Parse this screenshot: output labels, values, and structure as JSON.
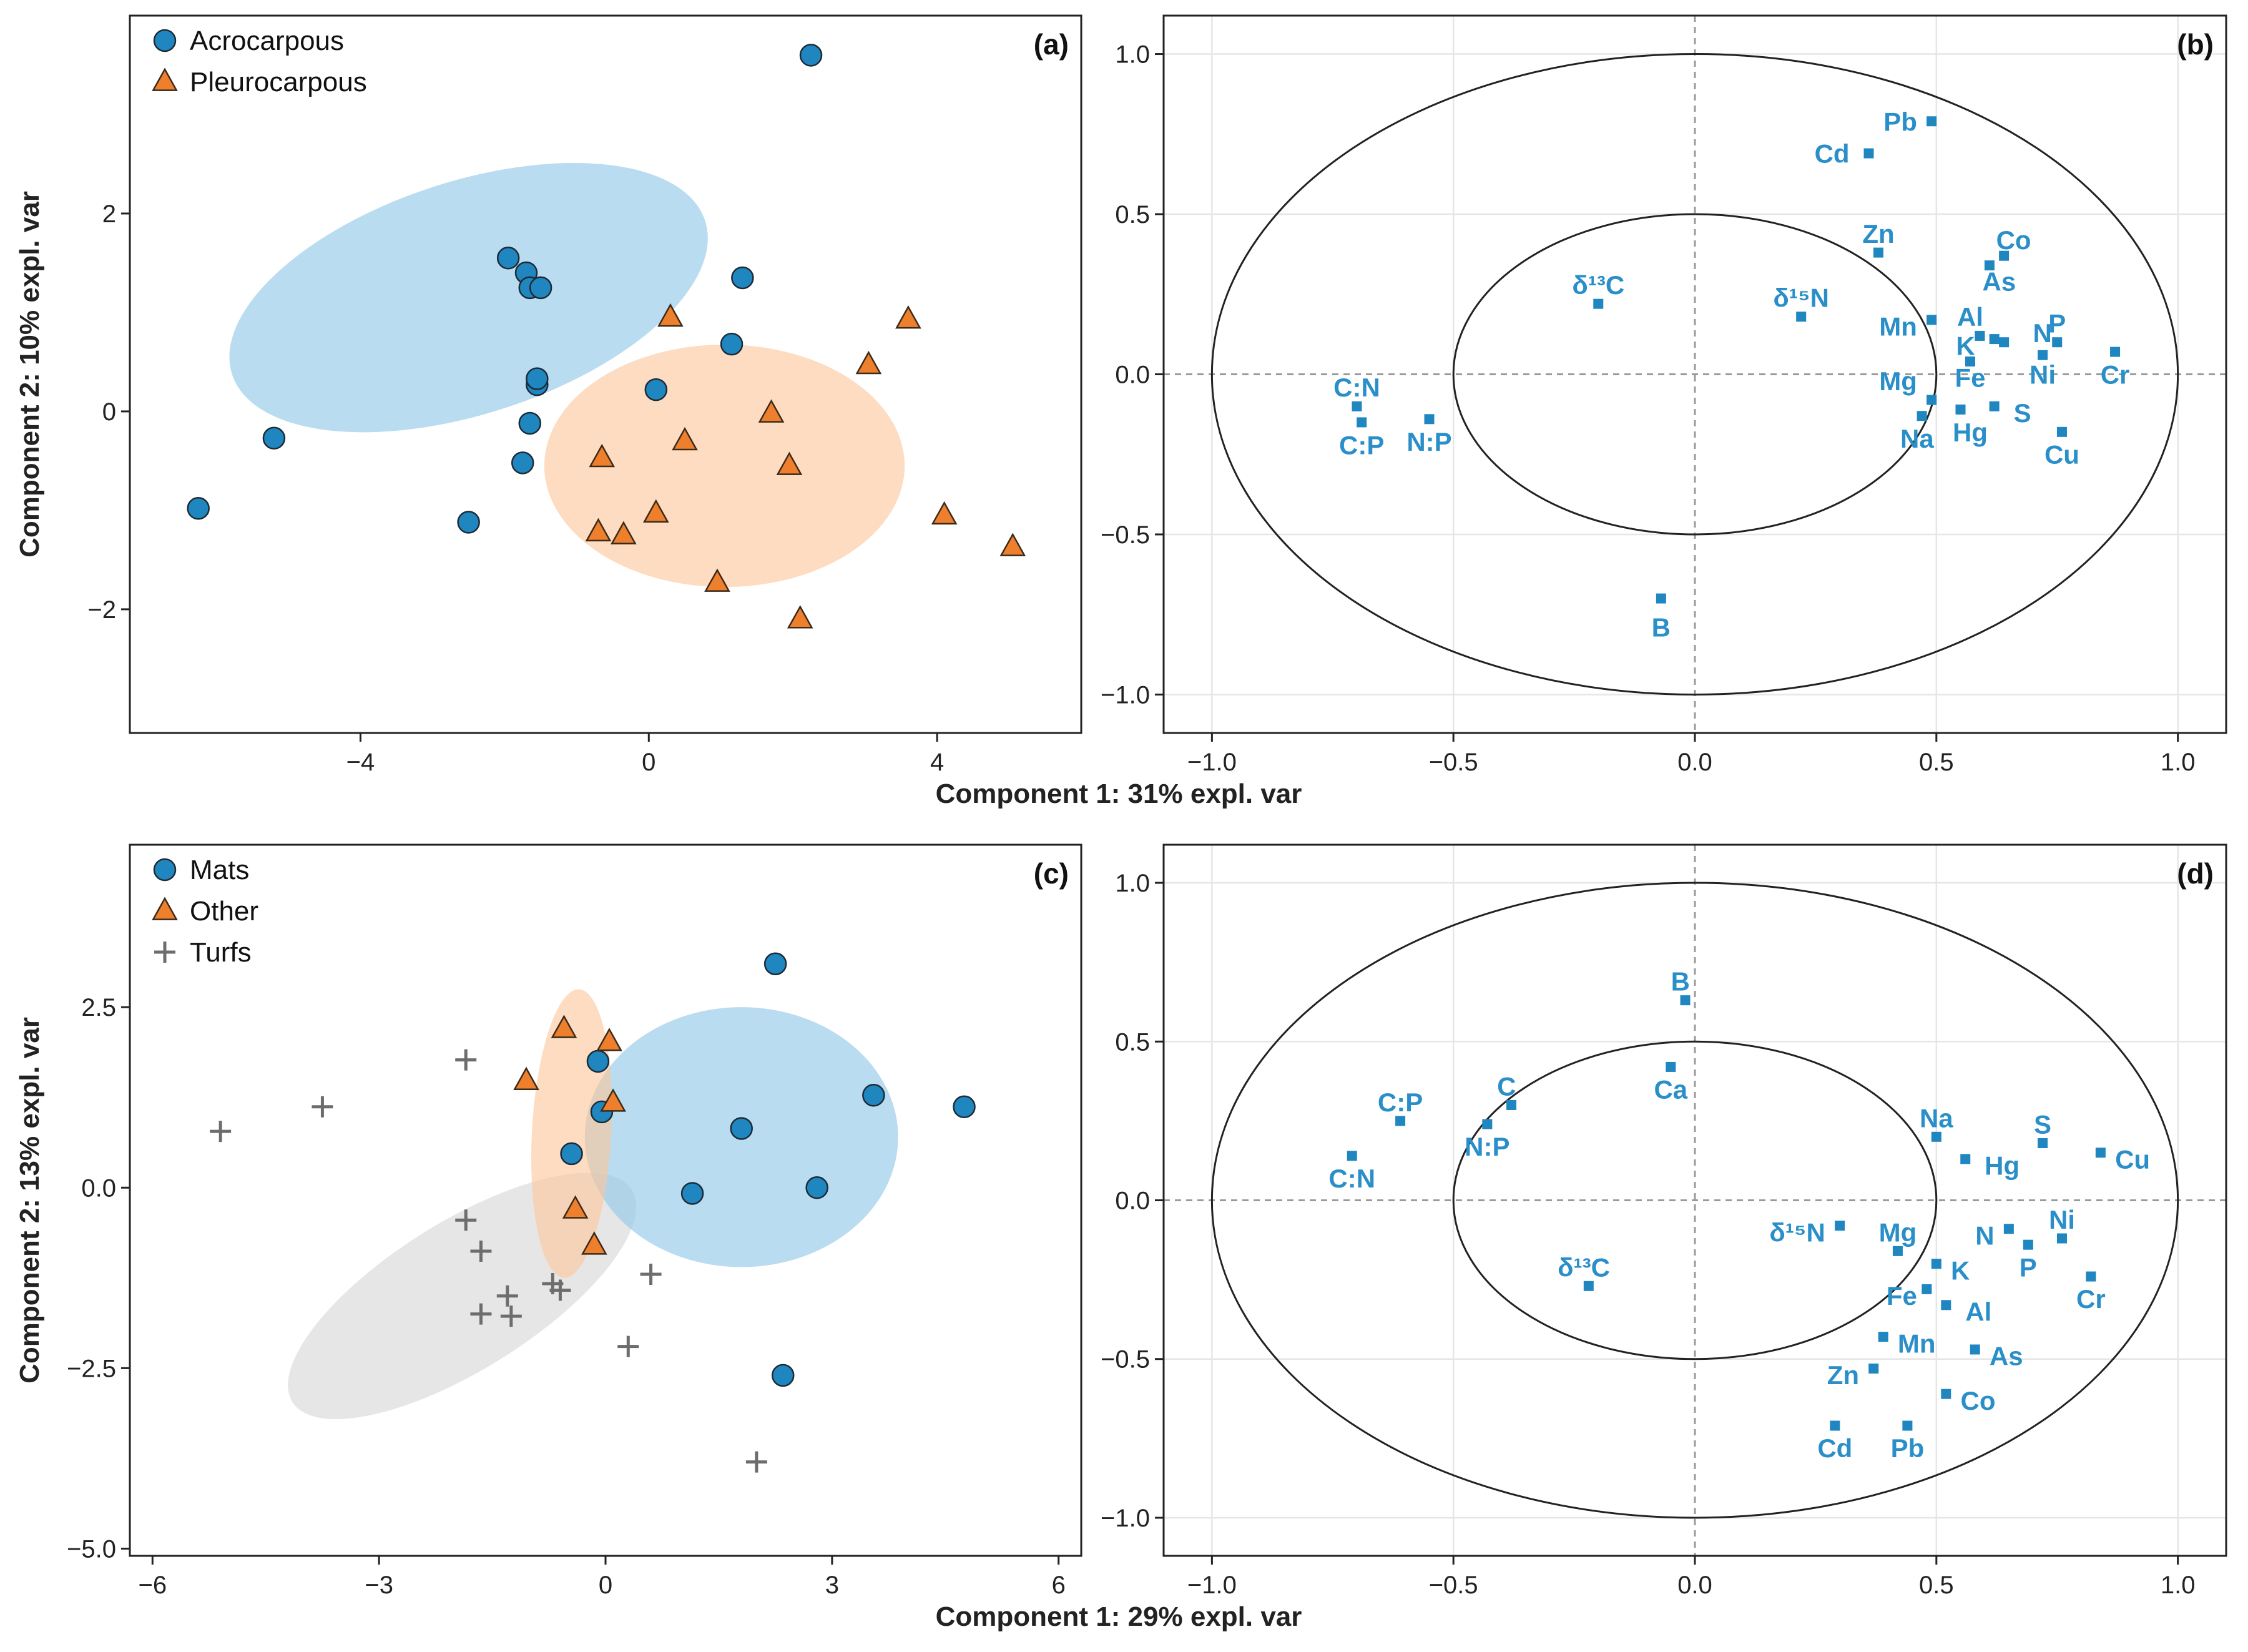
{
  "colors": {
    "blue": "#1f86c0",
    "blue_fill": "#8ec7e6",
    "orange": "#ee7f2d",
    "orange_fill": "#fbc79b",
    "gray": "#6d6d6d",
    "gray_fill": "#d7d7d7",
    "label_blue": "#2a8fc9"
  },
  "chart_data": [
    {
      "id": "a",
      "type": "scatter",
      "panel_label": "(a)",
      "xlim": [
        -7.2,
        6.0
      ],
      "ylim": [
        -3.25,
        4.0
      ],
      "xticks": [
        -4,
        0,
        4
      ],
      "xtick_labels": [
        "−4",
        "0",
        "4"
      ],
      "yticks": [
        2,
        0,
        -2
      ],
      "ytick_labels": [
        "2",
        "0",
        "−2"
      ],
      "ylabel": "Component 2: 10% expl. var",
      "legend": [
        {
          "label": "Acrocarpous",
          "marker": "circle",
          "color": "blue"
        },
        {
          "label": "Pleurocarpous",
          "marker": "triangle",
          "color": "orange"
        }
      ],
      "ellipses": [
        {
          "group": "Acrocarpous",
          "cx": -2.5,
          "cy": 1.15,
          "rx": 6.9,
          "ry": 2.35,
          "angle_deg": 18,
          "color": "blue"
        },
        {
          "group": "Pleurocarpous",
          "cx": 1.05,
          "cy": -0.55,
          "rx": 5.0,
          "ry": 2.45,
          "angle_deg": 0,
          "color": "orange"
        }
      ],
      "series": [
        {
          "name": "Acrocarpous",
          "marker": "circle",
          "color": "blue",
          "points": [
            [
              2.25,
              3.6
            ],
            [
              -1.95,
              1.55
            ],
            [
              -1.7,
              1.4
            ],
            [
              -1.65,
              1.25
            ],
            [
              -1.5,
              1.25
            ],
            [
              1.3,
              1.35
            ],
            [
              1.15,
              0.68
            ],
            [
              -1.55,
              0.27
            ],
            [
              -1.55,
              0.33
            ],
            [
              0.1,
              0.22
            ],
            [
              -1.65,
              -0.12
            ],
            [
              -5.2,
              -0.27
            ],
            [
              -1.75,
              -0.52
            ],
            [
              -6.25,
              -0.98
            ],
            [
              -2.5,
              -1.12
            ]
          ]
        },
        {
          "name": "Pleurocarpous",
          "marker": "triangle",
          "color": "orange",
          "points": [
            [
              0.3,
              0.95
            ],
            [
              3.6,
              0.93
            ],
            [
              3.05,
              0.47
            ],
            [
              1.7,
              -0.02
            ],
            [
              0.5,
              -0.3
            ],
            [
              -0.65,
              -0.47
            ],
            [
              1.95,
              -0.55
            ],
            [
              0.1,
              -1.03
            ],
            [
              -0.7,
              -1.22
            ],
            [
              -0.35,
              -1.25
            ],
            [
              4.1,
              -1.05
            ],
            [
              5.05,
              -1.37
            ],
            [
              0.95,
              -1.73
            ],
            [
              2.1,
              -2.1
            ]
          ]
        }
      ]
    },
    {
      "id": "b",
      "type": "scatter",
      "panel_label": "(b)",
      "xlim": [
        -1.1,
        1.1
      ],
      "ylim": [
        -1.12,
        1.12
      ],
      "xticks": [
        -1.0,
        -0.5,
        0.0,
        0.5,
        1.0
      ],
      "xtick_labels": [
        "−1.0",
        "−0.5",
        "0.0",
        "0.5",
        "1.0"
      ],
      "yticks": [
        1.0,
        0.5,
        0.0,
        -0.5,
        -1.0
      ],
      "ytick_labels": [
        "1.0",
        "0.5",
        "0.0",
        "−0.5",
        "−1.0"
      ],
      "xlabel": "Component 1: 31% expl. var",
      "circles": [
        1.0,
        0.5
      ],
      "variables": [
        {
          "label": "Pb",
          "x": 0.49,
          "y": 0.79,
          "ldx": -0.03,
          "ldy": 0.0,
          "anchor": "end"
        },
        {
          "label": "Cd",
          "x": 0.36,
          "y": 0.69,
          "ldx": -0.04,
          "ldy": 0.0,
          "anchor": "end"
        },
        {
          "label": "Zn",
          "x": 0.38,
          "y": 0.38,
          "ldx": 0.0,
          "ldy": 0.06,
          "anchor": "middle"
        },
        {
          "label": "Co",
          "x": 0.64,
          "y": 0.37,
          "ldx": 0.02,
          "ldy": 0.05,
          "anchor": "middle"
        },
        {
          "label": "As",
          "x": 0.61,
          "y": 0.34,
          "ldx": 0.02,
          "ldy": -0.05,
          "anchor": "middle"
        },
        {
          "label": "δ¹³C",
          "x": -0.2,
          "y": 0.22,
          "ldx": 0.0,
          "ldy": 0.06,
          "anchor": "middle"
        },
        {
          "label": "δ¹⁵N",
          "x": 0.22,
          "y": 0.18,
          "ldx": 0.0,
          "ldy": 0.06,
          "anchor": "middle"
        },
        {
          "label": "Mn",
          "x": 0.49,
          "y": 0.17,
          "ldx": -0.03,
          "ldy": -0.02,
          "anchor": "end"
        },
        {
          "label": "Al",
          "x": 0.59,
          "y": 0.12,
          "ldx": -0.02,
          "ldy": 0.06,
          "anchor": "middle"
        },
        {
          "label": "N",
          "x": 0.64,
          "y": 0.1,
          "ldx": 0.06,
          "ldy": 0.03,
          "anchor": "start"
        },
        {
          "label": "P",
          "x": 0.75,
          "y": 0.1,
          "ldx": 0.0,
          "ldy": 0.06,
          "anchor": "middle"
        },
        {
          "label": "K",
          "x": 0.62,
          "y": 0.11,
          "ldx": -0.04,
          "ldy": -0.02,
          "anchor": "end"
        },
        {
          "label": "Ni",
          "x": 0.72,
          "y": 0.06,
          "ldx": 0.0,
          "ldy": -0.06,
          "anchor": "middle"
        },
        {
          "label": "Cr",
          "x": 0.87,
          "y": 0.07,
          "ldx": 0.0,
          "ldy": -0.07,
          "anchor": "middle"
        },
        {
          "label": "Mg",
          "x": 0.49,
          "y": -0.08,
          "ldx": -0.03,
          "ldy": 0.06,
          "anchor": "end"
        },
        {
          "label": "Fe",
          "x": 0.57,
          "y": 0.04,
          "ldx": 0.0,
          "ldy": -0.05,
          "anchor": "middle"
        },
        {
          "label": "S",
          "x": 0.62,
          "y": -0.1,
          "ldx": 0.04,
          "ldy": -0.02,
          "anchor": "start"
        },
        {
          "label": "Hg",
          "x": 0.55,
          "y": -0.11,
          "ldx": 0.02,
          "ldy": -0.07,
          "anchor": "middle"
        },
        {
          "label": "Na",
          "x": 0.47,
          "y": -0.13,
          "ldx": -0.01,
          "ldy": -0.07,
          "anchor": "middle"
        },
        {
          "label": "Cu",
          "x": 0.76,
          "y": -0.18,
          "ldx": 0.0,
          "ldy": -0.07,
          "anchor": "middle"
        },
        {
          "label": "C:N",
          "x": -0.7,
          "y": -0.1,
          "ldx": 0.0,
          "ldy": 0.06,
          "anchor": "middle"
        },
        {
          "label": "C:P",
          "x": -0.69,
          "y": -0.15,
          "ldx": 0.0,
          "ldy": -0.07,
          "anchor": "middle"
        },
        {
          "label": "N:P",
          "x": -0.55,
          "y": -0.14,
          "ldx": 0.0,
          "ldy": -0.07,
          "anchor": "middle"
        },
        {
          "label": "B",
          "x": -0.07,
          "y": -0.7,
          "ldx": 0.0,
          "ldy": -0.09,
          "anchor": "middle"
        }
      ]
    },
    {
      "id": "c",
      "type": "scatter",
      "panel_label": "(c)",
      "xlim": [
        -6.3,
        6.3
      ],
      "ylim": [
        -5.1,
        4.75
      ],
      "xticks": [
        -6,
        -3,
        0,
        3,
        6
      ],
      "xtick_labels": [
        "−6",
        "−3",
        "0",
        "3",
        "6"
      ],
      "yticks": [
        2.5,
        0.0,
        -2.5,
        -5.0
      ],
      "ytick_labels": [
        "2.5",
        "0.0",
        "−2.5",
        "−5.0"
      ],
      "ylabel": "Component 2: 13% expl. var",
      "legend": [
        {
          "label": "Mats",
          "marker": "circle",
          "color": "blue"
        },
        {
          "label": "Other",
          "marker": "triangle",
          "color": "orange"
        },
        {
          "label": "Turfs",
          "marker": "plus",
          "color": "gray"
        }
      ],
      "ellipses": [
        {
          "group": "Turfs",
          "cx": -1.9,
          "cy": -1.5,
          "rx": 5.3,
          "ry": 2.05,
          "angle_deg": 32,
          "color": "gray"
        },
        {
          "group": "Mats",
          "cx": 1.8,
          "cy": 0.7,
          "rx": 4.15,
          "ry": 3.6,
          "angle_deg": 0,
          "color": "blue"
        },
        {
          "group": "Other",
          "cx": -0.45,
          "cy": 0.75,
          "rx": 1.05,
          "ry": 4.0,
          "angle_deg": -3,
          "color": "orange"
        }
      ],
      "series": [
        {
          "name": "Mats",
          "marker": "circle",
          "color": "blue",
          "points": [
            [
              2.25,
              3.1
            ],
            [
              3.55,
              1.28
            ],
            [
              4.75,
              1.12
            ],
            [
              1.8,
              0.82
            ],
            [
              -0.1,
              1.75
            ],
            [
              -0.05,
              1.05
            ],
            [
              -0.45,
              0.47
            ],
            [
              2.8,
              0.0
            ],
            [
              1.15,
              -0.08
            ],
            [
              2.35,
              -2.6
            ]
          ]
        },
        {
          "name": "Other",
          "marker": "triangle",
          "color": "orange",
          "points": [
            [
              -0.55,
              2.2
            ],
            [
              0.05,
              2.02
            ],
            [
              -1.05,
              1.48
            ],
            [
              0.1,
              1.18
            ],
            [
              -0.4,
              -0.3
            ],
            [
              -0.15,
              -0.8
            ]
          ]
        },
        {
          "name": "Turfs",
          "marker": "plus",
          "color": "gray",
          "points": [
            [
              -5.1,
              0.78
            ],
            [
              -3.75,
              1.12
            ],
            [
              -1.85,
              1.77
            ],
            [
              -1.85,
              -0.45
            ],
            [
              -1.65,
              -0.88
            ],
            [
              -1.65,
              -1.75
            ],
            [
              -1.3,
              -1.5
            ],
            [
              -1.25,
              -1.78
            ],
            [
              -0.7,
              -1.33
            ],
            [
              -0.6,
              -1.42
            ],
            [
              0.6,
              -1.2
            ],
            [
              0.3,
              -2.2
            ],
            [
              2.0,
              -3.8
            ]
          ]
        }
      ]
    },
    {
      "id": "d",
      "type": "scatter",
      "panel_label": "(d)",
      "xlim": [
        -1.1,
        1.1
      ],
      "ylim": [
        -1.12,
        1.12
      ],
      "xticks": [
        -1.0,
        -0.5,
        0.0,
        0.5,
        1.0
      ],
      "xtick_labels": [
        "−1.0",
        "−0.5",
        "0.0",
        "0.5",
        "1.0"
      ],
      "yticks": [
        1.0,
        0.5,
        0.0,
        -0.5,
        -1.0
      ],
      "ytick_labels": [
        "1.0",
        "0.5",
        "0.0",
        "−0.5",
        "−1.0"
      ],
      "xlabel": "Component 1: 29% expl. var",
      "circles": [
        1.0,
        0.5
      ],
      "variables": [
        {
          "label": "B",
          "x": -0.02,
          "y": 0.63,
          "ldx": -0.01,
          "ldy": 0.06,
          "anchor": "middle"
        },
        {
          "label": "Ca",
          "x": -0.05,
          "y": 0.42,
          "ldx": 0.0,
          "ldy": -0.07,
          "anchor": "middle"
        },
        {
          "label": "C:P",
          "x": -0.61,
          "y": 0.25,
          "ldx": 0.0,
          "ldy": 0.06,
          "anchor": "middle"
        },
        {
          "label": "C",
          "x": -0.38,
          "y": 0.3,
          "ldx": -0.01,
          "ldy": 0.06,
          "anchor": "middle"
        },
        {
          "label": "N:P",
          "x": -0.43,
          "y": 0.24,
          "ldx": 0.0,
          "ldy": -0.07,
          "anchor": "middle"
        },
        {
          "label": "C:N",
          "x": -0.71,
          "y": 0.14,
          "ldx": 0.0,
          "ldy": -0.07,
          "anchor": "middle"
        },
        {
          "label": "Na",
          "x": 0.5,
          "y": 0.2,
          "ldx": 0.0,
          "ldy": 0.06,
          "anchor": "middle"
        },
        {
          "label": "S",
          "x": 0.72,
          "y": 0.18,
          "ldx": 0.0,
          "ldy": 0.06,
          "anchor": "middle"
        },
        {
          "label": "Hg",
          "x": 0.56,
          "y": 0.13,
          "ldx": 0.04,
          "ldy": -0.02,
          "anchor": "start"
        },
        {
          "label": "Cu",
          "x": 0.84,
          "y": 0.15,
          "ldx": 0.03,
          "ldy": -0.02,
          "anchor": "start"
        },
        {
          "label": "δ¹⁵N",
          "x": 0.3,
          "y": -0.08,
          "ldx": -0.03,
          "ldy": -0.02,
          "anchor": "end"
        },
        {
          "label": "Mg",
          "x": 0.42,
          "y": -0.16,
          "ldx": 0.0,
          "ldy": 0.06,
          "anchor": "middle"
        },
        {
          "label": "N",
          "x": 0.65,
          "y": -0.09,
          "ldx": -0.03,
          "ldy": -0.02,
          "anchor": "end"
        },
        {
          "label": "Ni",
          "x": 0.76,
          "y": -0.12,
          "ldx": 0.0,
          "ldy": 0.06,
          "anchor": "middle"
        },
        {
          "label": "P",
          "x": 0.69,
          "y": -0.14,
          "ldx": 0.0,
          "ldy": -0.07,
          "anchor": "middle"
        },
        {
          "label": "K",
          "x": 0.5,
          "y": -0.2,
          "ldx": 0.03,
          "ldy": -0.02,
          "anchor": "start"
        },
        {
          "label": "Cr",
          "x": 0.82,
          "y": -0.24,
          "ldx": 0.0,
          "ldy": -0.07,
          "anchor": "middle"
        },
        {
          "label": "δ¹³C",
          "x": -0.22,
          "y": -0.27,
          "ldx": -0.01,
          "ldy": 0.06,
          "anchor": "middle"
        },
        {
          "label": "Fe",
          "x": 0.48,
          "y": -0.28,
          "ldx": -0.02,
          "ldy": -0.02,
          "anchor": "end"
        },
        {
          "label": "Al",
          "x": 0.52,
          "y": -0.33,
          "ldx": 0.04,
          "ldy": -0.02,
          "anchor": "start"
        },
        {
          "label": "Mn",
          "x": 0.39,
          "y": -0.43,
          "ldx": 0.03,
          "ldy": -0.02,
          "anchor": "start"
        },
        {
          "label": "As",
          "x": 0.58,
          "y": -0.47,
          "ldx": 0.03,
          "ldy": -0.02,
          "anchor": "start"
        },
        {
          "label": "Zn",
          "x": 0.37,
          "y": -0.53,
          "ldx": -0.03,
          "ldy": -0.02,
          "anchor": "end"
        },
        {
          "label": "Co",
          "x": 0.52,
          "y": -0.61,
          "ldx": 0.03,
          "ldy": -0.02,
          "anchor": "start"
        },
        {
          "label": "Cd",
          "x": 0.29,
          "y": -0.71,
          "ldx": 0.0,
          "ldy": -0.07,
          "anchor": "middle"
        },
        {
          "label": "Pb",
          "x": 0.44,
          "y": -0.71,
          "ldx": 0.0,
          "ldy": -0.07,
          "anchor": "middle"
        }
      ]
    }
  ]
}
